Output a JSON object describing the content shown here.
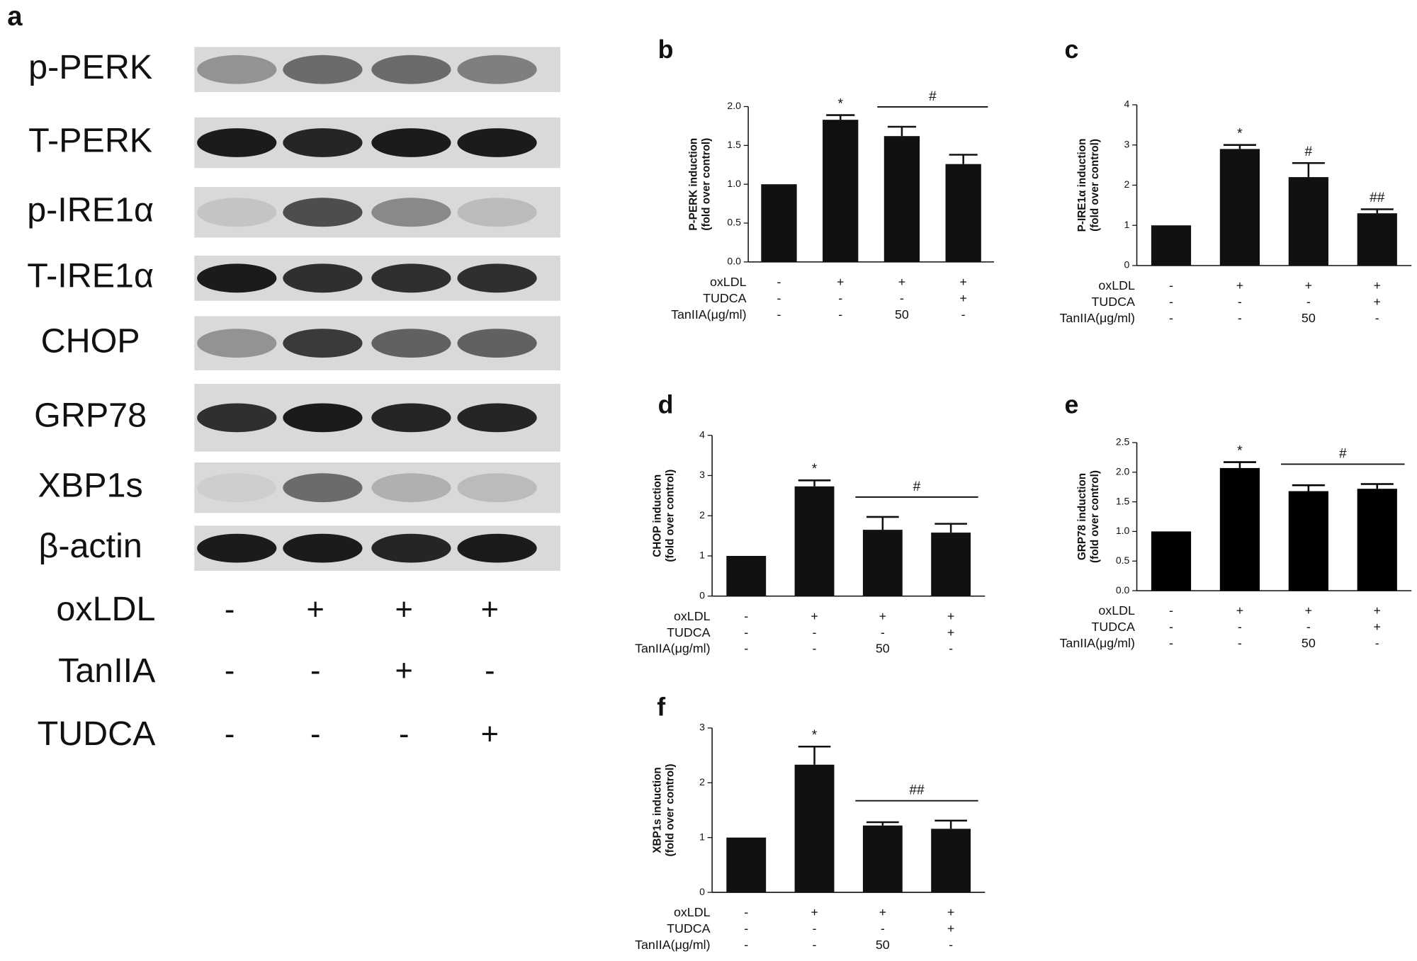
{
  "blot": {
    "panel_label": "a",
    "proteins": [
      "p-PERK",
      "T-PERK",
      "p-IRE1α",
      "T-IRE1α",
      "CHOP",
      "GRP78",
      "XBP1s",
      "β-actin"
    ],
    "treatments": [
      {
        "name": "oxLDL",
        "signs": [
          "-",
          "+",
          "+",
          "+"
        ]
      },
      {
        "name": "TanIIA",
        "signs": [
          "-",
          "-",
          "+",
          "-"
        ]
      },
      {
        "name": "TUDCA",
        "signs": [
          "-",
          "-",
          "-",
          "+"
        ]
      }
    ]
  },
  "chart_data": [
    {
      "type": "bar",
      "panel_label": "b",
      "ylabel": [
        "P-PERK induction",
        "(fold over control)"
      ],
      "categories": [
        null,
        null,
        null,
        null
      ],
      "values": [
        1.0,
        1.83,
        1.62,
        1.26
      ],
      "errors": [
        null,
        0.06,
        0.12,
        0.12
      ],
      "bar_labels": [
        null,
        "*",
        null,
        null
      ],
      "group_label": "#",
      "ylim": [
        0,
        2
      ],
      "yticks": [
        {
          "value": 0,
          "label": "0.0"
        },
        {
          "value": 0.5,
          "label": "0.5"
        },
        {
          "value": 1,
          "label": "1.0"
        },
        {
          "value": 1.5,
          "label": "1.5"
        },
        {
          "value": 2,
          "label": "2.0"
        }
      ],
      "treatments": [
        {
          "name": "oxLDL",
          "signs": [
            "-",
            "+",
            "+",
            "+"
          ]
        },
        {
          "name": "TUDCA",
          "signs": [
            "-",
            "-",
            "-",
            "+"
          ]
        },
        {
          "name": "TanIIA(μg/ml)",
          "signs": [
            "-",
            "-",
            "50",
            "-"
          ]
        }
      ],
      "color": "#111111"
    },
    {
      "type": "bar",
      "panel_label": "c",
      "ylabel": [
        "P-IRE1α induction",
        "(fold over control)"
      ],
      "categories": [
        null,
        null,
        null,
        null
      ],
      "values": [
        1.0,
        2.9,
        2.2,
        1.3
      ],
      "errors": [
        null,
        0.1,
        0.35,
        0.1
      ],
      "bar_labels": [
        null,
        "*",
        "#",
        "##"
      ],
      "ylim": [
        0,
        4
      ],
      "yticks": [
        0,
        1,
        2,
        3,
        4
      ],
      "treatments": [
        {
          "name": "oxLDL",
          "signs": [
            "-",
            "+",
            "+",
            "+"
          ]
        },
        {
          "name": "TUDCA",
          "signs": [
            "-",
            "-",
            "-",
            "+"
          ]
        },
        {
          "name": "TanIIA(μg/ml)",
          "signs": [
            "-",
            "-",
            "50",
            "-"
          ]
        }
      ],
      "color": "#111111"
    },
    {
      "type": "bar",
      "panel_label": "d",
      "ylabel": [
        "CHOP induction",
        "(fold over control)"
      ],
      "categories": [
        null,
        null,
        null,
        null
      ],
      "values": [
        1.0,
        2.73,
        1.65,
        1.58
      ],
      "errors": [
        null,
        0.15,
        0.32,
        0.22
      ],
      "bar_labels": [
        null,
        "*",
        null,
        null
      ],
      "group_label": "#",
      "ylim": [
        0,
        4
      ],
      "yticks": [
        0,
        1,
        2,
        3,
        4
      ],
      "treatments": [
        {
          "name": "oxLDL",
          "signs": [
            "-",
            "+",
            "+",
            "+"
          ]
        },
        {
          "name": "TUDCA",
          "signs": [
            "-",
            "-",
            "-",
            "+"
          ]
        },
        {
          "name": "TanIIA(μg/ml)",
          "signs": [
            "-",
            "-",
            "50",
            "-"
          ]
        }
      ],
      "color": "#111111"
    },
    {
      "type": "bar",
      "panel_label": "e",
      "ylabel": [
        "GRP78 induction",
        "(fold over control)"
      ],
      "categories": [
        null,
        null,
        null,
        null
      ],
      "values": [
        1.0,
        2.07,
        1.68,
        1.72
      ],
      "errors": [
        null,
        0.1,
        0.1,
        0.08
      ],
      "bar_labels": [
        null,
        "*",
        null,
        null
      ],
      "group_label": "#",
      "ylim": [
        0,
        2.5
      ],
      "yticks": [
        {
          "value": 0,
          "label": "0.0"
        },
        {
          "value": 0.5,
          "label": "0.5"
        },
        {
          "value": 1,
          "label": "1.0"
        },
        {
          "value": 1.5,
          "label": "1.5"
        },
        {
          "value": 2,
          "label": "2.0"
        },
        {
          "value": 2.5,
          "label": "2.5"
        }
      ],
      "treatments": [
        {
          "name": "oxLDL",
          "signs": [
            "-",
            "+",
            "+",
            "+"
          ]
        },
        {
          "name": "TUDCA",
          "signs": [
            "-",
            "-",
            "-",
            "+"
          ]
        },
        {
          "name": "TanIIA(μg/ml)",
          "signs": [
            "-",
            "-",
            "50",
            "-"
          ]
        }
      ],
      "color": "#000000"
    },
    {
      "type": "bar",
      "panel_label": "f",
      "ylabel": [
        "XBP1s induction",
        "(fold over control)"
      ],
      "categories": [
        null,
        null,
        null,
        null
      ],
      "values": [
        1.0,
        2.33,
        1.22,
        1.16
      ],
      "errors": [
        null,
        0.33,
        0.06,
        0.15
      ],
      "bar_labels": [
        null,
        "*",
        null,
        null
      ],
      "group_label": "##",
      "ylim": [
        0,
        3
      ],
      "yticks": [
        0,
        1,
        2,
        3
      ],
      "treatments": [
        {
          "name": "oxLDL",
          "signs": [
            "-",
            "+",
            "+",
            "+"
          ]
        },
        {
          "name": "TUDCA",
          "signs": [
            "-",
            "-",
            "-",
            "+"
          ]
        },
        {
          "name": "TanIIA(μg/ml)",
          "signs": [
            "-",
            "-",
            "50",
            "-"
          ]
        }
      ],
      "color": "#111111"
    }
  ]
}
